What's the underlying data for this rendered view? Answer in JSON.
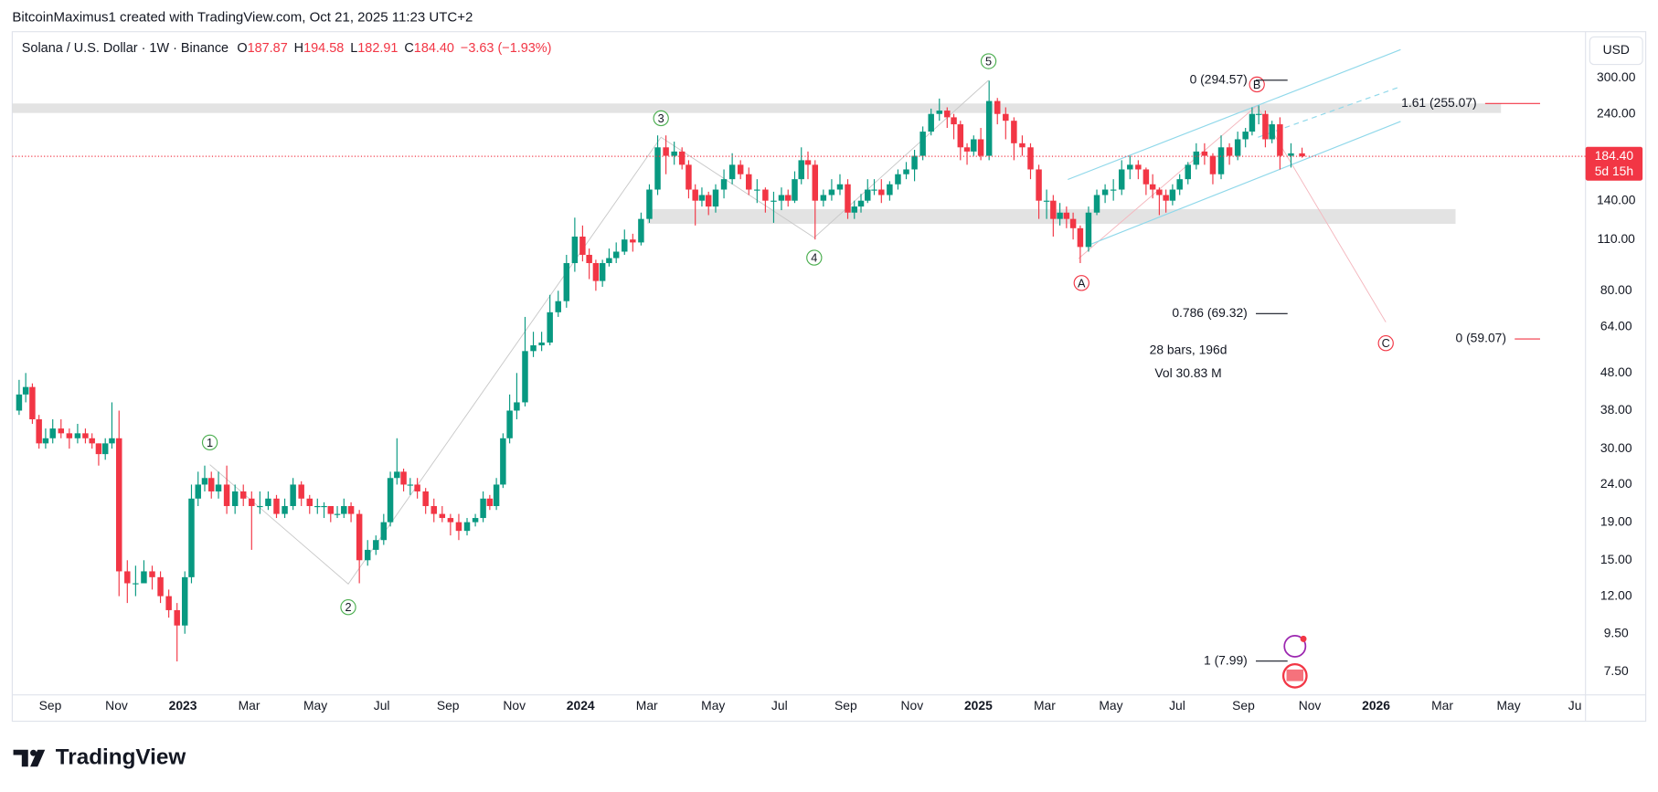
{
  "header": {
    "credit": "BitcoinMaximus1 created with TradingView.com, Oct 21, 2025 11:23 UTC+2",
    "legend": {
      "symbol": "Solana / U.S. Dollar · 1W · Binance",
      "items": [
        {
          "key": "O",
          "value": 187.87
        },
        {
          "key": "H",
          "value": 194.58
        },
        {
          "key": "L",
          "value": 182.91
        },
        {
          "key": "C",
          "value": {
            "value": 184.4,
            "label": "184.40"
          }
        }
      ],
      "change": "−3.63 (−1.93%)"
    }
  },
  "chart_data": {
    "type": "candlestick",
    "log_scale": true,
    "grid": false,
    "currency": "USD",
    "up_color": "#089981",
    "down_color": "#f23645",
    "last_price": {
      "value": 184.4,
      "label": "184.40"
    },
    "countdown": "5d 15h",
    "xlim": [
      "2022-08",
      "2026-07"
    ],
    "xticks": [
      {
        "value": "2022-09",
        "label": "Sep"
      },
      {
        "value": "2022-11",
        "label": "Nov"
      },
      {
        "value": "2023-01",
        "label": "2023"
      },
      {
        "value": "2023-03",
        "label": "Mar"
      },
      {
        "value": "2023-05",
        "label": "May"
      },
      {
        "value": "2023-07",
        "label": "Jul"
      },
      {
        "value": "2023-09",
        "label": "Sep"
      },
      {
        "value": "2023-11",
        "label": "Nov"
      },
      {
        "value": "2024-01",
        "label": "2024"
      },
      {
        "value": "2024-03",
        "label": "Mar"
      },
      {
        "value": "2024-05",
        "label": "May"
      },
      {
        "value": "2024-07",
        "label": "Jul"
      },
      {
        "value": "2024-09",
        "label": "Sep"
      },
      {
        "value": "2024-11",
        "label": "Nov"
      },
      {
        "value": "2025-01",
        "label": "2025"
      },
      {
        "value": "2025-03",
        "label": "Mar"
      },
      {
        "value": "2025-05",
        "label": "May"
      },
      {
        "value": "2025-07",
        "label": "Jul"
      },
      {
        "value": "2025-09",
        "label": "Sep"
      },
      {
        "value": "2025-11",
        "label": "Nov"
      },
      {
        "value": "2026-01",
        "label": "2026"
      },
      {
        "value": "2026-03",
        "label": "Mar"
      },
      {
        "value": "2026-05",
        "label": "May"
      },
      {
        "value": "2026-07",
        "label": "Ju"
      }
    ],
    "ylim": [
      6.5,
      400
    ],
    "yticks": [
      {
        "value": 300,
        "label": "300.00"
      },
      {
        "value": 240,
        "label": "240.00"
      },
      {
        "value": 140,
        "label": "140.00"
      },
      {
        "value": 110,
        "label": "110.00"
      },
      {
        "value": 80,
        "label": "80.00"
      },
      {
        "value": 64,
        "label": "64.00"
      },
      {
        "value": 48,
        "label": "48.00"
      },
      {
        "value": 38,
        "label": "38.00"
      },
      {
        "value": 30,
        "label": "30.00"
      },
      {
        "value": 24,
        "label": "24.00"
      },
      {
        "value": 19,
        "label": "19.00"
      },
      {
        "value": 15,
        "label": "15.00"
      },
      {
        "value": 12,
        "label": "12.00"
      },
      {
        "value": 9.5,
        "label": "9.50"
      },
      {
        "value": 7.5,
        "label": "7.50"
      }
    ],
    "x": [
      "2022-08",
      "2022-08",
      "2022-08",
      "2022-08",
      "2022-08",
      "2022-09",
      "2022-09",
      "2022-09",
      "2022-09",
      "2022-10",
      "2022-10",
      "2022-10",
      "2022-10",
      "2022-10",
      "2022-11",
      "2022-11",
      "2022-11",
      "2022-11",
      "2022-12",
      "2022-12",
      "2022-12",
      "2022-12",
      "2023-01",
      "2023-01",
      "2023-01",
      "2023-01",
      "2023-01",
      "2023-02",
      "2023-02",
      "2023-02",
      "2023-02",
      "2023-03",
      "2023-03",
      "2023-03",
      "2023-03",
      "2023-04",
      "2023-04",
      "2023-04",
      "2023-04",
      "2023-05",
      "2023-05",
      "2023-05",
      "2023-05",
      "2023-05",
      "2023-06",
      "2023-06",
      "2023-06",
      "2023-06",
      "2023-07",
      "2023-07",
      "2023-07",
      "2023-07",
      "2023-07",
      "2023-08",
      "2023-08",
      "2023-08",
      "2023-08",
      "2023-09",
      "2023-09",
      "2023-09",
      "2023-09",
      "2023-10",
      "2023-10",
      "2023-10",
      "2023-10",
      "2023-10",
      "2023-11",
      "2023-11",
      "2023-11",
      "2023-11",
      "2023-12",
      "2023-12",
      "2023-12",
      "2023-12",
      "2024-01",
      "2024-01",
      "2024-01",
      "2024-01",
      "2024-01",
      "2024-02",
      "2024-02",
      "2024-02",
      "2024-02",
      "2024-03",
      "2024-03",
      "2024-03",
      "2024-03",
      "2024-04",
      "2024-04",
      "2024-04",
      "2024-04",
      "2024-04",
      "2024-05",
      "2024-05",
      "2024-05",
      "2024-05",
      "2024-06",
      "2024-06",
      "2024-06",
      "2024-06",
      "2024-07",
      "2024-07",
      "2024-07",
      "2024-07",
      "2024-07",
      "2024-08",
      "2024-08",
      "2024-08",
      "2024-08",
      "2024-09",
      "2024-09",
      "2024-09",
      "2024-09",
      "2024-09",
      "2024-10",
      "2024-10",
      "2024-10",
      "2024-10",
      "2024-11",
      "2024-11",
      "2024-11",
      "2024-11",
      "2024-12",
      "2024-12",
      "2024-12",
      "2024-12",
      "2024-12",
      "2025-01",
      "2025-01",
      "2025-01",
      "2025-01",
      "2025-02",
      "2025-02",
      "2025-02",
      "2025-02",
      "2025-03",
      "2025-03",
      "2025-03",
      "2025-03",
      "2025-03",
      "2025-04",
      "2025-04",
      "2025-04",
      "2025-04",
      "2025-05",
      "2025-05",
      "2025-05",
      "2025-05",
      "2025-06",
      "2025-06",
      "2025-06",
      "2025-06",
      "2025-06",
      "2025-07",
      "2025-07",
      "2025-07",
      "2025-07",
      "2025-08",
      "2025-08",
      "2025-08",
      "2025-08",
      "2025-09",
      "2025-09",
      "2025-09",
      "2025-09",
      "2025-09",
      "2025-10",
      "2025-10",
      "2025-10"
    ],
    "open": [
      38,
      42,
      44,
      36,
      31,
      32,
      34,
      33,
      32,
      33,
      32,
      31,
      29,
      31,
      32,
      14,
      13,
      13,
      14,
      13.5,
      12,
      11,
      10,
      13.5,
      22,
      24,
      25,
      23,
      24,
      21,
      23,
      22,
      21,
      21,
      22,
      20,
      21,
      24,
      22,
      21,
      21,
      21,
      20,
      20,
      21,
      20,
      15,
      16,
      17,
      19,
      25,
      26,
      24,
      24,
      23,
      21,
      20,
      19.5,
      19,
      18,
      19,
      19.5,
      22,
      21,
      24,
      32,
      38,
      40,
      55,
      57,
      58,
      70,
      75,
      95,
      112,
      100,
      95,
      85,
      95,
      98,
      102,
      110,
      108,
      125,
      150,
      195,
      185,
      190,
      175,
      150,
      140,
      145,
      135,
      150,
      160,
      175,
      165,
      150,
      150,
      140,
      140,
      145,
      140,
      160,
      180,
      175,
      140,
      145,
      150,
      155,
      130,
      135,
      140,
      150,
      150,
      145,
      155,
      165,
      170,
      185,
      215,
      240,
      245,
      235,
      225,
      195,
      190,
      205,
      185,
      260,
      240,
      230,
      200,
      195,
      170,
      140,
      140,
      125,
      130,
      125,
      118,
      105,
      130,
      145,
      150,
      150,
      170,
      175,
      170,
      155,
      150,
      145,
      140,
      150,
      160,
      175,
      190,
      185,
      165,
      195,
      185,
      205,
      215,
      240,
      240,
      205,
      225,
      185,
      187.87
    ],
    "high": [
      46,
      48,
      45,
      37,
      34,
      36,
      36,
      34,
      35,
      34,
      33,
      31,
      32,
      40,
      38,
      15,
      14.5,
      15,
      14.5,
      14,
      12.5,
      11.5,
      14,
      24,
      26,
      27,
      26,
      26,
      27,
      24,
      24,
      23,
      23,
      23,
      22.5,
      22,
      25,
      24.5,
      22.5,
      22,
      21.5,
      21,
      21,
      22,
      21.5,
      20.5,
      17,
      17.5,
      20,
      26,
      32,
      26.5,
      25,
      25,
      23.5,
      22,
      21,
      20,
      20,
      19.5,
      20,
      23,
      22.5,
      25,
      33,
      42,
      48,
      68,
      62,
      62,
      78,
      80,
      100,
      126,
      120,
      104,
      97,
      97,
      104,
      108,
      117,
      114,
      130,
      155,
      210,
      210,
      202,
      195,
      180,
      155,
      152,
      148,
      155,
      170,
      188,
      180,
      172,
      160,
      152,
      148,
      152,
      150,
      168,
      195,
      190,
      180,
      150,
      160,
      165,
      160,
      140,
      146,
      160,
      160,
      160,
      158,
      170,
      178,
      192,
      222,
      248,
      264,
      250,
      240,
      230,
      200,
      210,
      220,
      295,
      265,
      250,
      235,
      210,
      200,
      175,
      150,
      145,
      138,
      135,
      130,
      120,
      135,
      150,
      155,
      160,
      180,
      185,
      180,
      172,
      165,
      152,
      150,
      155,
      165,
      178,
      200,
      200,
      188,
      210,
      200,
      215,
      220,
      250,
      253,
      245,
      230,
      235,
      200,
      194.58
    ],
    "low": [
      37,
      40,
      35,
      30,
      30,
      31,
      32,
      30,
      31,
      31,
      30,
      27,
      28,
      30,
      12,
      11.5,
      12,
      13,
      12.5,
      11.5,
      10.5,
      8,
      9.5,
      13,
      21,
      23,
      22,
      22,
      20,
      20,
      21,
      16,
      20,
      20.5,
      19.5,
      19.5,
      20.5,
      21,
      20,
      20,
      19.5,
      19,
      19.5,
      19.5,
      19,
      13,
      14.5,
      15.5,
      16.5,
      18.5,
      24,
      23,
      22.5,
      22,
      20,
      19,
      19,
      17.5,
      17,
      17.5,
      18.5,
      19,
      20.5,
      20.5,
      23.5,
      31,
      36,
      39,
      53,
      55,
      57,
      68,
      72,
      90,
      96,
      86,
      80,
      82,
      93,
      95,
      100,
      102,
      106,
      122,
      145,
      165,
      175,
      170,
      142,
      120,
      135,
      128,
      130,
      142,
      155,
      160,
      145,
      138,
      130,
      122,
      132,
      135,
      138,
      155,
      160,
      110,
      135,
      140,
      145,
      125,
      125,
      130,
      138,
      145,
      138,
      140,
      150,
      160,
      158,
      180,
      210,
      230,
      220,
      205,
      180,
      175,
      185,
      180,
      180,
      225,
      205,
      180,
      185,
      160,
      125,
      125,
      112,
      120,
      118,
      110,
      95,
      102,
      128,
      138,
      140,
      145,
      160,
      160,
      145,
      142,
      128,
      130,
      136,
      145,
      155,
      170,
      175,
      155,
      160,
      175,
      180,
      195,
      210,
      225,
      195,
      200,
      170,
      172,
      182.91
    ],
    "close": [
      42,
      44,
      36,
      31,
      32,
      34,
      33,
      32,
      33,
      32,
      31,
      29,
      31,
      32,
      14,
      13,
      13,
      14,
      13.5,
      12,
      11,
      10,
      13.5,
      22,
      24,
      25,
      23,
      24,
      21,
      23,
      22,
      21,
      21,
      22,
      20,
      21,
      24,
      22,
      21,
      21,
      21,
      20,
      20,
      21,
      20,
      15,
      16,
      17,
      19,
      25,
      26,
      24,
      24,
      23,
      21,
      20,
      19.5,
      19,
      18,
      19,
      19.5,
      22,
      21,
      24,
      32,
      38,
      40,
      55,
      57,
      58,
      70,
      75,
      95,
      112,
      100,
      95,
      85,
      95,
      98,
      102,
      110,
      108,
      125,
      150,
      195,
      185,
      190,
      175,
      150,
      140,
      145,
      135,
      150,
      160,
      175,
      165,
      150,
      150,
      140,
      140,
      145,
      140,
      160,
      180,
      175,
      140,
      145,
      150,
      155,
      130,
      135,
      140,
      150,
      150,
      145,
      155,
      165,
      170,
      185,
      215,
      240,
      245,
      235,
      225,
      195,
      190,
      205,
      185,
      260,
      240,
      230,
      200,
      195,
      170,
      140,
      140,
      125,
      130,
      125,
      118,
      105,
      130,
      145,
      150,
      150,
      170,
      175,
      170,
      155,
      150,
      145,
      140,
      150,
      160,
      175,
      190,
      185,
      165,
      195,
      185,
      205,
      215,
      240,
      240,
      205,
      225,
      185,
      187.87,
      184.4
    ]
  },
  "annotations": {
    "waves": [
      "1",
      "2",
      "3",
      "4",
      "5"
    ],
    "corrective": [
      "A",
      "B",
      "C"
    ],
    "fib": [
      "0 (294.57)",
      "0.786 (69.32)",
      "1 (7.99)"
    ],
    "extension": [
      "1.61 (255.07)",
      "0 (59.07)"
    ],
    "range": [
      "28 bars, 196d",
      "Vol 30.83 M"
    ]
  },
  "footer": {
    "brand": "TradingView"
  }
}
